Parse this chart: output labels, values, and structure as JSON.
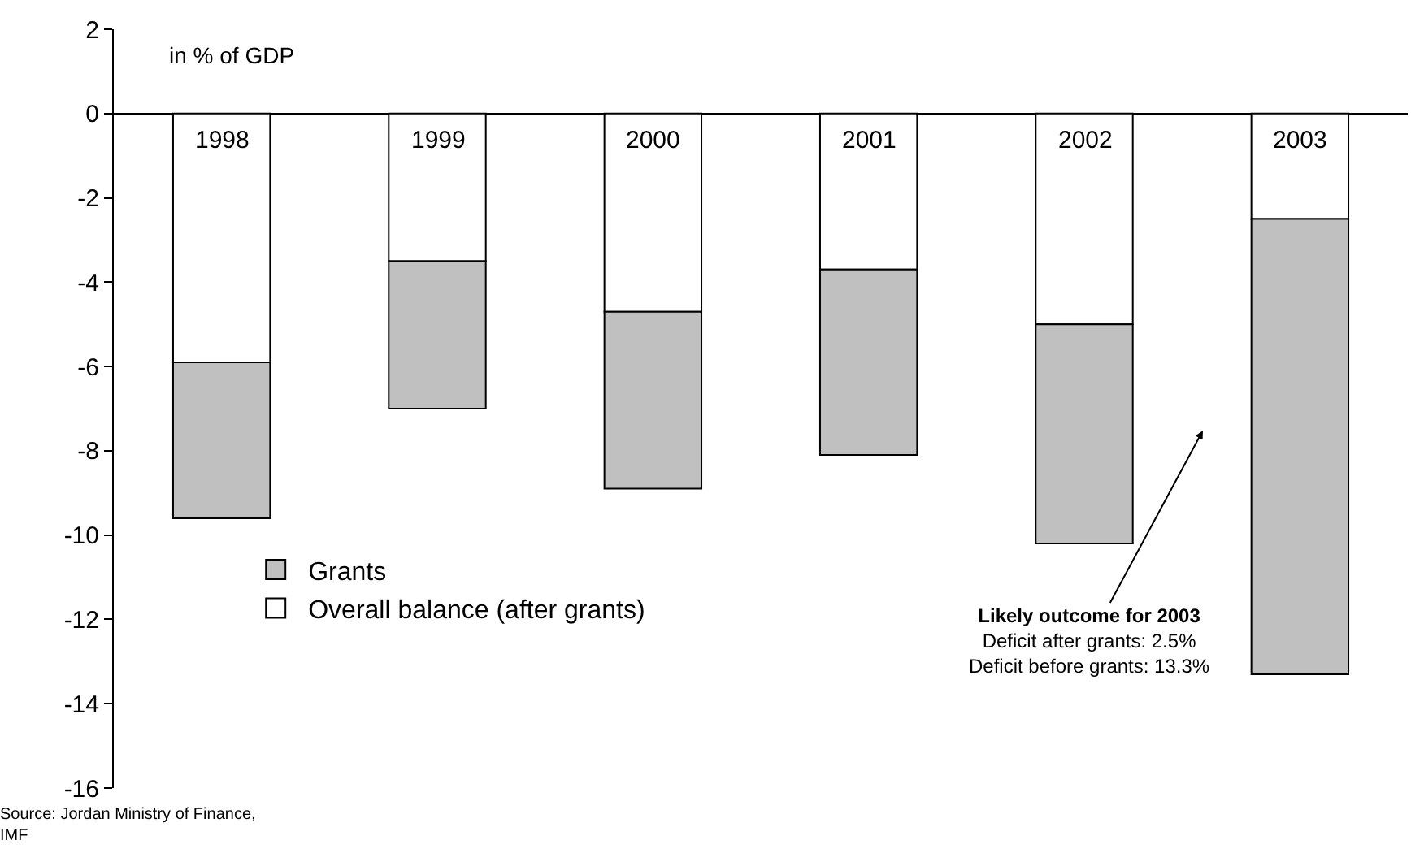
{
  "chart_data": {
    "type": "bar",
    "stacked": true,
    "ylabel": "in % of GDP",
    "categories": [
      "1998",
      "1999",
      "2000",
      "2001",
      "2002",
      "2003"
    ],
    "series": [
      {
        "name": "Overall balance (after grants)",
        "color": "#ffffff",
        "values": [
          -5.9,
          -3.5,
          -4.7,
          -3.7,
          -5.0,
          -2.5
        ]
      },
      {
        "name": "Grants",
        "color": "#c0c0c0",
        "values": [
          -3.7,
          -3.5,
          -4.2,
          -4.4,
          -5.2,
          -10.8
        ]
      }
    ],
    "ylim": [
      -16,
      2
    ],
    "yticks": [
      -16,
      -14,
      -12,
      -10,
      -8,
      -6,
      -4,
      -2,
      0,
      2
    ],
    "legend": "bottom left",
    "annotations": [
      "Likely outcome for 2003\nDeficit after grants: 2.5%\nDeficit before grants: 13.3%",
      "Source: Jordan Ministry of Finance,\nIMF"
    ]
  }
}
